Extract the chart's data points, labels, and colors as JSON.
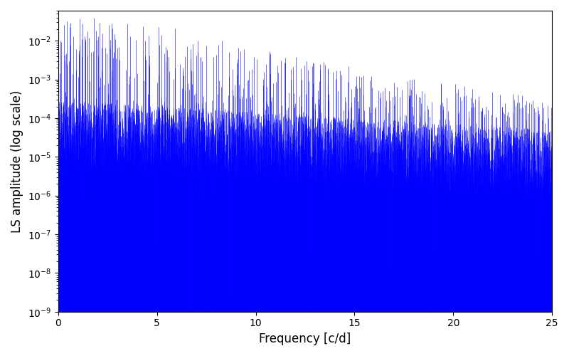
{
  "title": "",
  "xlabel": "Frequency [c/d]",
  "ylabel": "LS amplitude (log scale)",
  "xlim": [
    0,
    25
  ],
  "ylim_low": 1e-09,
  "ylim_high": 0.06,
  "line_color": "#0000FF",
  "line_width": 0.4,
  "freq_max": 25.0,
  "n_stems": 5000,
  "seed": 42,
  "background_color": "#ffffff",
  "figsize": [
    8.0,
    5.0
  ],
  "dpi": 100
}
